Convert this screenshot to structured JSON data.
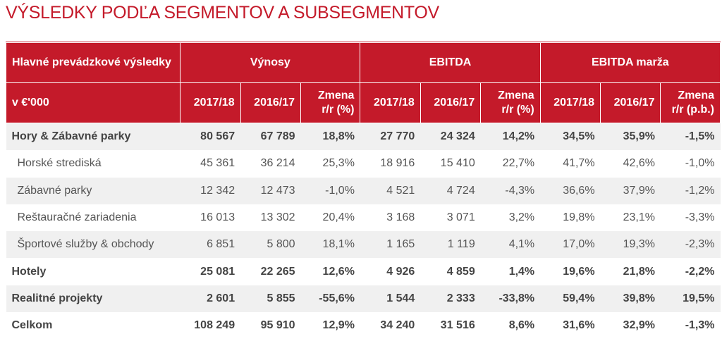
{
  "title": "VÝSLEDKY PODĽA SEGMENTOV A SUBSEGMENTOV",
  "header": {
    "row1": {
      "label": "Hlavné prevádzkové výsledky",
      "groups": [
        "Výnosy",
        "EBITDA",
        "EBITDA marža"
      ]
    },
    "row2": {
      "label": "v €'000",
      "cols": [
        "2017/18",
        "2016/17",
        "Zmena r/r (%)",
        "2017/18",
        "2016/17",
        "Zmena r/r (%)",
        "2017/18",
        "2016/17",
        "Zmena r/r (p.b.)"
      ]
    }
  },
  "colors": {
    "accent": "#c41a2a",
    "row_shade": "#f0f0f0"
  },
  "rows": [
    {
      "label": "Hory & Zábavné parky",
      "bold": true,
      "values": [
        "80 567",
        "67 789",
        "18,8%",
        "27 770",
        "24 324",
        "14,2%",
        "34,5%",
        "35,9%",
        "-1,5%"
      ]
    },
    {
      "label": "Horské strediská",
      "bold": false,
      "values": [
        "45 361",
        "36 214",
        "25,3%",
        "18 916",
        "15 410",
        "22,7%",
        "41,7%",
        "42,6%",
        "-1,0%"
      ]
    },
    {
      "label": "Zábavné parky",
      "bold": false,
      "values": [
        "12 342",
        "12 473",
        "-1,0%",
        "4 521",
        "4 724",
        "-4,3%",
        "36,6%",
        "37,9%",
        "-1,2%"
      ]
    },
    {
      "label": "Reštauračné zariadenia",
      "bold": false,
      "values": [
        "16 013",
        "13 302",
        "20,4%",
        "3 168",
        "3 071",
        "3,2%",
        "19,8%",
        "23,1%",
        "-3,3%"
      ]
    },
    {
      "label": "Športové služby & obchody",
      "bold": false,
      "values": [
        "6 851",
        "5 800",
        "18,1%",
        "1 165",
        "1 119",
        "4,1%",
        "17,0%",
        "19,3%",
        "-2,3%"
      ]
    },
    {
      "label": "Hotely",
      "bold": true,
      "values": [
        "25 081",
        "22 265",
        "12,6%",
        "4 926",
        "4 859",
        "1,4%",
        "19,6%",
        "21,8%",
        "-2,2%"
      ]
    },
    {
      "label": "Realitné projekty",
      "bold": true,
      "values": [
        "2 601",
        "5 855",
        "-55,6%",
        "1 544",
        "2 333",
        "-33,8%",
        "59,4%",
        "39,8%",
        "19,5%"
      ]
    },
    {
      "label": "Celkom",
      "bold": true,
      "values": [
        "108 249",
        "95 910",
        "12,9%",
        "34 240",
        "31 516",
        "8,6%",
        "31,6%",
        "32,9%",
        "-1,3%"
      ]
    }
  ]
}
